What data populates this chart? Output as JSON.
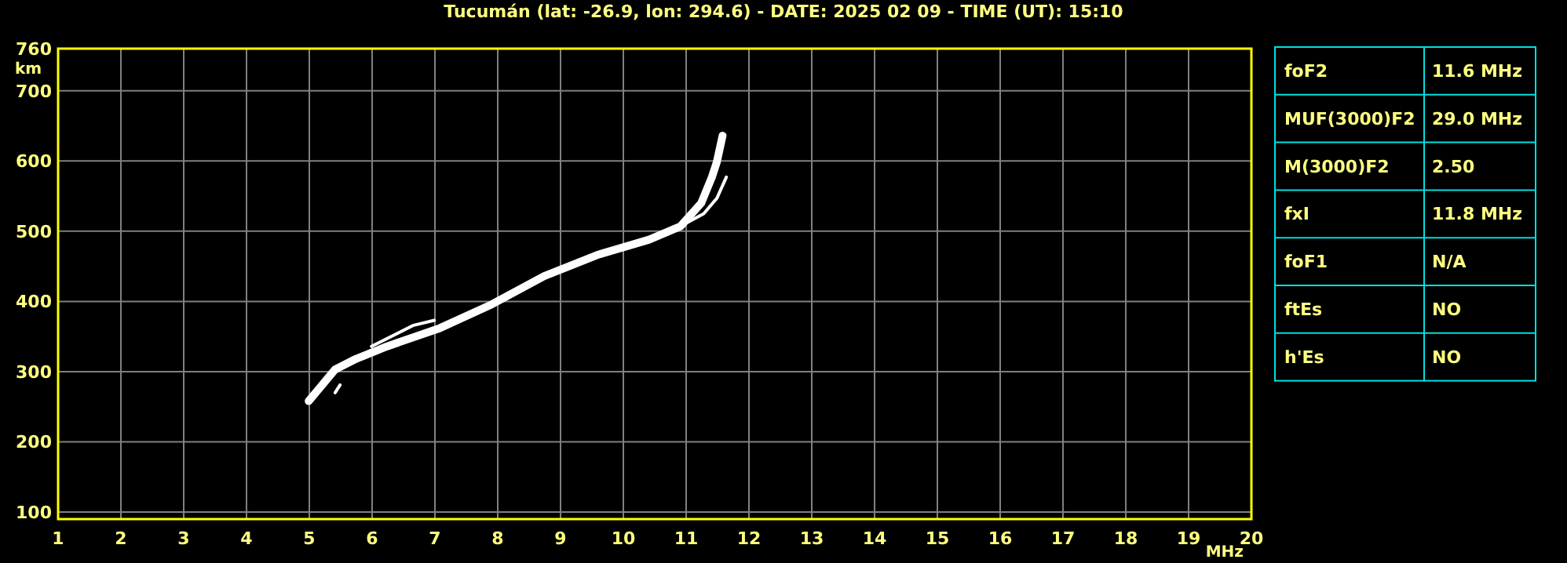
{
  "chart_data": [
    {
      "type": "line",
      "title": "Tucumán (lat: -26.9, lon: 294.6) - DATE: 2025 02 09 - TIME (UT): 15:10",
      "xlabel": "MHz",
      "ylabel": "km",
      "xlim": [
        1,
        20
      ],
      "ylim": [
        90,
        760
      ],
      "xticks": [
        1,
        2,
        3,
        4,
        5,
        6,
        7,
        8,
        9,
        10,
        11,
        12,
        13,
        14,
        15,
        16,
        17,
        18,
        19,
        20
      ],
      "yticks": [
        100,
        200,
        300,
        400,
        500,
        600,
        700,
        760
      ],
      "grid": true,
      "marker": "none",
      "line_style": "solid",
      "series": [
        {
          "color": "#ffffff",
          "x": [
            4.99,
            5.41,
            5.74,
            6.24,
            7.08,
            7.91,
            8.74,
            9.58,
            10.41,
            10.91,
            11.24,
            11.41,
            11.49,
            11.58
          ],
          "values": [
            258,
            303,
            318,
            336,
            362,
            396,
            436,
            466,
            488,
            507,
            540,
            577,
            599,
            636
          ]
        },
        {
          "color": "#ffffff",
          "x": [
            10.91,
            11.28,
            11.49,
            11.64
          ],
          "values": [
            507,
            525,
            547,
            577
          ]
        },
        {
          "color": "#ffffff",
          "x": [
            5.99,
            6.66,
            6.99
          ],
          "values": [
            336,
            366,
            373
          ]
        },
        {
          "color": "#ffffff",
          "x": [
            5.41,
            5.49
          ],
          "values": [
            270,
            281
          ]
        }
      ]
    },
    {
      "type": "other",
      "y_categories": [
        "foF2",
        "MUF(3000)F2",
        "M(3000)F2",
        "fxI",
        "foF1",
        "ftEs",
        "h'Es"
      ],
      "cell_labels": [
        [
          "11.6 MHz"
        ],
        [
          "29.0 MHz"
        ],
        [
          "2.50"
        ],
        [
          "11.8 MHz"
        ],
        [
          "N/A"
        ],
        [
          "NO"
        ],
        [
          "NO"
        ]
      ]
    }
  ]
}
